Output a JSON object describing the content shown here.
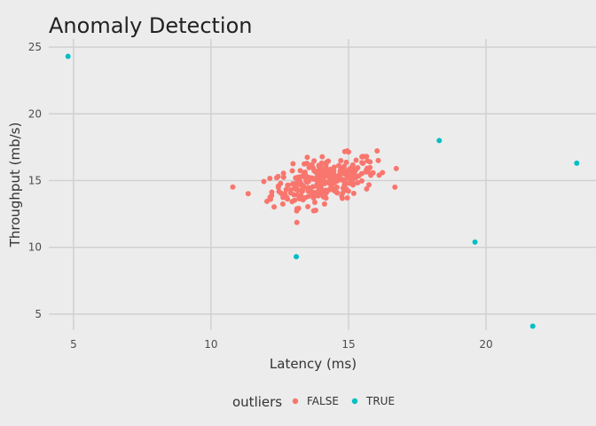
{
  "chart_data": {
    "type": "scatter",
    "title": "Anomaly Detection",
    "xlabel": "Latency (ms)",
    "ylabel": "Throughput (mb/s)",
    "xlim": [
      4.1,
      24.0
    ],
    "ylim": [
      3.8,
      25.6
    ],
    "xticks": [
      5,
      10,
      15,
      20
    ],
    "yticks": [
      5,
      10,
      15,
      20,
      25
    ],
    "grid": true,
    "legend": {
      "title": "outliers",
      "placement": "bottom",
      "entries": [
        {
          "label": "FALSE",
          "color": "#f8766d"
        },
        {
          "label": "TRUE",
          "color": "#00bfc4"
        }
      ]
    },
    "series": [
      {
        "name": "FALSE",
        "color": "#f8766d",
        "cluster": {
          "count": 300,
          "center": [
            14.1,
            15.0
          ],
          "x_sd": 0.95,
          "y_sd": 0.9
        }
      },
      {
        "name": "TRUE",
        "color": "#00bfc4",
        "points": [
          {
            "x": 4.8,
            "y": 24.3
          },
          {
            "x": 13.1,
            "y": 9.3
          },
          {
            "x": 18.3,
            "y": 18.0
          },
          {
            "x": 19.6,
            "y": 10.4
          },
          {
            "x": 21.7,
            "y": 4.1
          },
          {
            "x": 23.3,
            "y": 16.3
          }
        ]
      }
    ]
  }
}
